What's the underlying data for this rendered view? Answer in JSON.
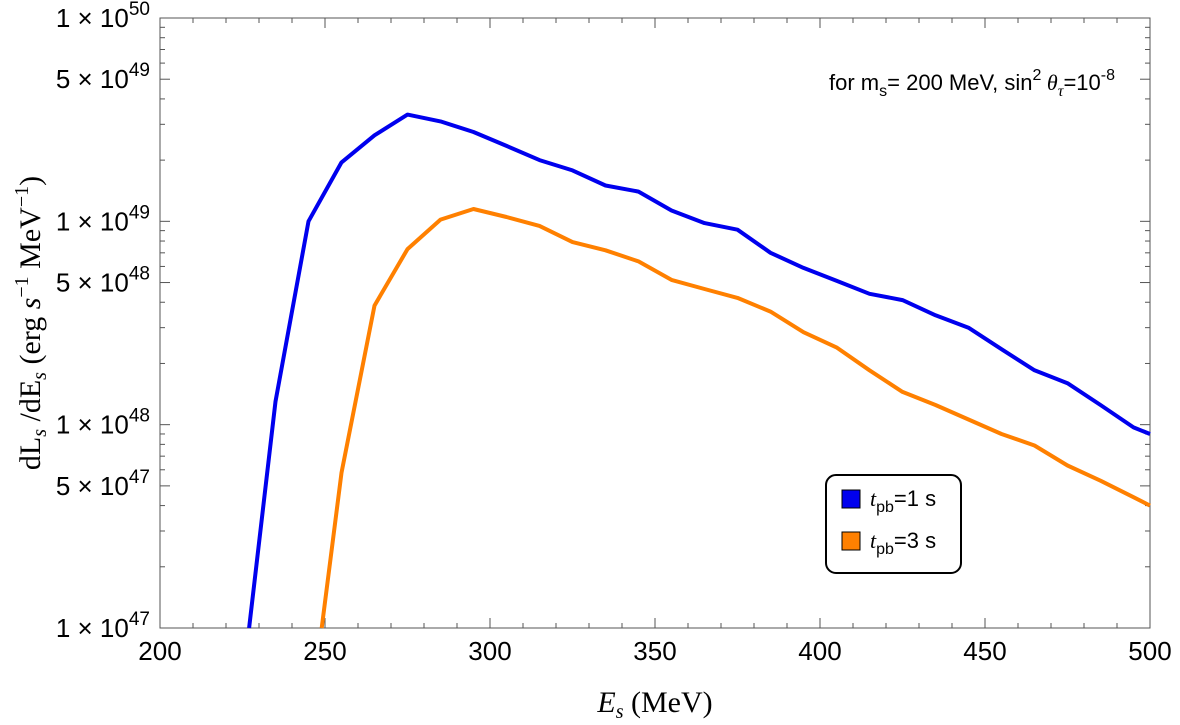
{
  "chart_data": {
    "type": "line",
    "x_scale": "linear",
    "y_scale": "log",
    "xlim": [
      200,
      500
    ],
    "ylim": [
      1e+47,
      1e+50
    ],
    "x_ticks": [
      200,
      250,
      300,
      350,
      400,
      450,
      500
    ],
    "x_tick_labels": [
      "200",
      "250",
      "300",
      "350",
      "400",
      "450",
      "500"
    ],
    "y_ticks": [
      {
        "mantissa": "1",
        "exponent": "47",
        "value": 1e+47
      },
      {
        "mantissa": "5",
        "exponent": "47",
        "value": 5e+47
      },
      {
        "mantissa": "1",
        "exponent": "48",
        "value": 1e+48
      },
      {
        "mantissa": "5",
        "exponent": "48",
        "value": 5e+48
      },
      {
        "mantissa": "1",
        "exponent": "49",
        "value": 1e+49
      },
      {
        "mantissa": "5",
        "exponent": "49",
        "value": 5e+49
      },
      {
        "mantissa": "1",
        "exponent": "50",
        "value": 1e+50
      }
    ],
    "xlabel": {
      "sym": "E",
      "sub": "s",
      "unit": " (MeV)"
    },
    "ylabel": "dL_s /dE_s (erg s^-1 MeV^-1)",
    "annotation": "for m_s= 200 MeV, sin^2 θ_τ=10^-8",
    "legend_position": "bottom-right",
    "series": [
      {
        "name": "t_pb=1 s",
        "color": "#0000ee",
        "x": [
          227,
          235,
          245,
          255,
          265,
          275,
          285,
          295,
          305,
          315,
          325,
          335,
          345,
          355,
          365,
          375,
          385,
          395,
          405,
          415,
          425,
          435,
          445,
          455,
          465,
          475,
          485,
          495,
          500
        ],
        "y": [
          1e+47,
          1.3e+48,
          1e+49,
          1.95e+49,
          2.65e+49,
          3.35e+49,
          3.1e+49,
          2.75e+49,
          2.35e+49,
          2e+49,
          1.78e+49,
          1.5e+49,
          1.4e+49,
          1.13e+49,
          9.8e+48,
          9.1e+48,
          7e+48,
          5.9e+48,
          5.1e+48,
          4.4e+48,
          4.1e+48,
          3.45e+48,
          3e+48,
          2.35e+48,
          1.85e+48,
          1.6e+48,
          1.25e+48,
          9.7e+47,
          9e+47
        ]
      },
      {
        "name": "t_pb=3 s",
        "color": "#ff8000",
        "x": [
          249,
          255,
          265,
          275,
          285,
          295,
          305,
          315,
          325,
          335,
          345,
          355,
          365,
          375,
          385,
          395,
          405,
          415,
          425,
          435,
          445,
          455,
          465,
          475,
          485,
          495,
          500
        ],
        "y": [
          1e+47,
          5.8e+47,
          3.85e+48,
          7.3e+48,
          1.02e+49,
          1.15e+49,
          1.05e+49,
          9.5e+48,
          7.9e+48,
          7.2e+48,
          6.35e+48,
          5.15e+48,
          4.65e+48,
          4.2e+48,
          3.6e+48,
          2.85e+48,
          2.4e+48,
          1.85e+48,
          1.45e+48,
          1.25e+48,
          1.06e+48,
          9e+47,
          7.9e+47,
          6.3e+47,
          5.3e+47,
          4.4e+47,
          4e+47
        ]
      }
    ]
  }
}
